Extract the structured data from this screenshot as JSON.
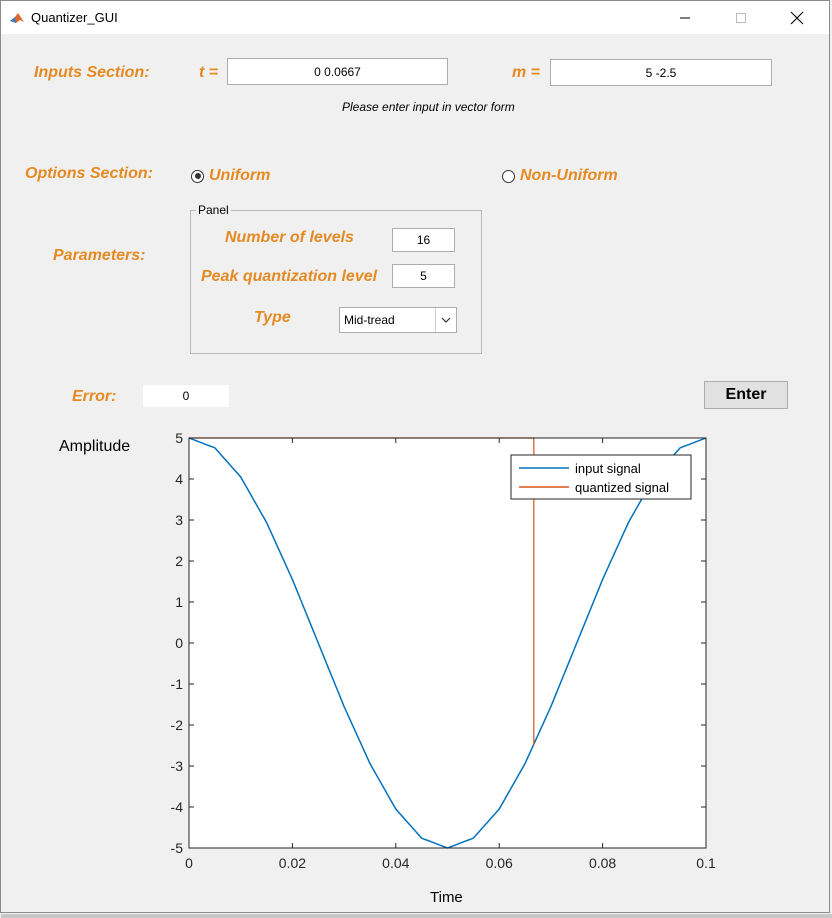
{
  "window": {
    "title": "Quantizer_GUI"
  },
  "inputs": {
    "section_label": "Inputs Section:",
    "t_label": "t =",
    "t_value": "0 0.0667",
    "m_label": "m =",
    "m_value": "5 -2.5",
    "note": "Please enter input in vector form"
  },
  "options": {
    "section_label": "Options Section:",
    "uniform_label": "Uniform",
    "nonuniform_label": "Non-Uniform",
    "selected": "Uniform"
  },
  "parameters": {
    "label": "Parameters:",
    "panel_title": "Panel",
    "levels_label": "Number of levels",
    "levels_value": "16",
    "peak_label": "Peak quantization level",
    "peak_value": "5",
    "type_label": "Type",
    "type_value": "Mid-tread"
  },
  "error": {
    "label": "Error:",
    "value": "0"
  },
  "enter_label": "Enter",
  "colors": {
    "accent": "#e58a22",
    "input_line": "#0072bd",
    "quantized_line": "#d95319"
  },
  "chart_data": {
    "type": "line",
    "xlabel": "Time",
    "ylabel": "Amplitude",
    "xlim": [
      0,
      0.1
    ],
    "ylim": [
      -5,
      5
    ],
    "xticks": [
      "0",
      "0.02",
      "0.04",
      "0.06",
      "0.08",
      "0.1"
    ],
    "yticks": [
      "5",
      "4",
      "3",
      "2",
      "1",
      "0",
      "-1",
      "-2",
      "-3",
      "-4",
      "-5"
    ],
    "legend_position": "top-right",
    "series": [
      {
        "name": "input signal",
        "color": "#0072bd",
        "x": [
          0,
          0.005,
          0.01,
          0.015,
          0.02,
          0.025,
          0.03,
          0.035,
          0.04,
          0.045,
          0.05,
          0.055,
          0.06,
          0.065,
          0.07,
          0.075,
          0.08,
          0.085,
          0.09,
          0.095,
          0.1
        ],
        "y": [
          5,
          4.76,
          4.05,
          2.94,
          1.55,
          0,
          -1.55,
          -2.94,
          -4.05,
          -4.76,
          -5,
          -4.76,
          -4.05,
          -2.94,
          -1.55,
          0,
          1.55,
          2.94,
          4.05,
          4.76,
          5
        ]
      },
      {
        "name": "quantized signal",
        "color": "#d95319",
        "x": [
          0,
          0.0667,
          0.0667
        ],
        "y": [
          5,
          5,
          -2.5
        ]
      }
    ]
  }
}
